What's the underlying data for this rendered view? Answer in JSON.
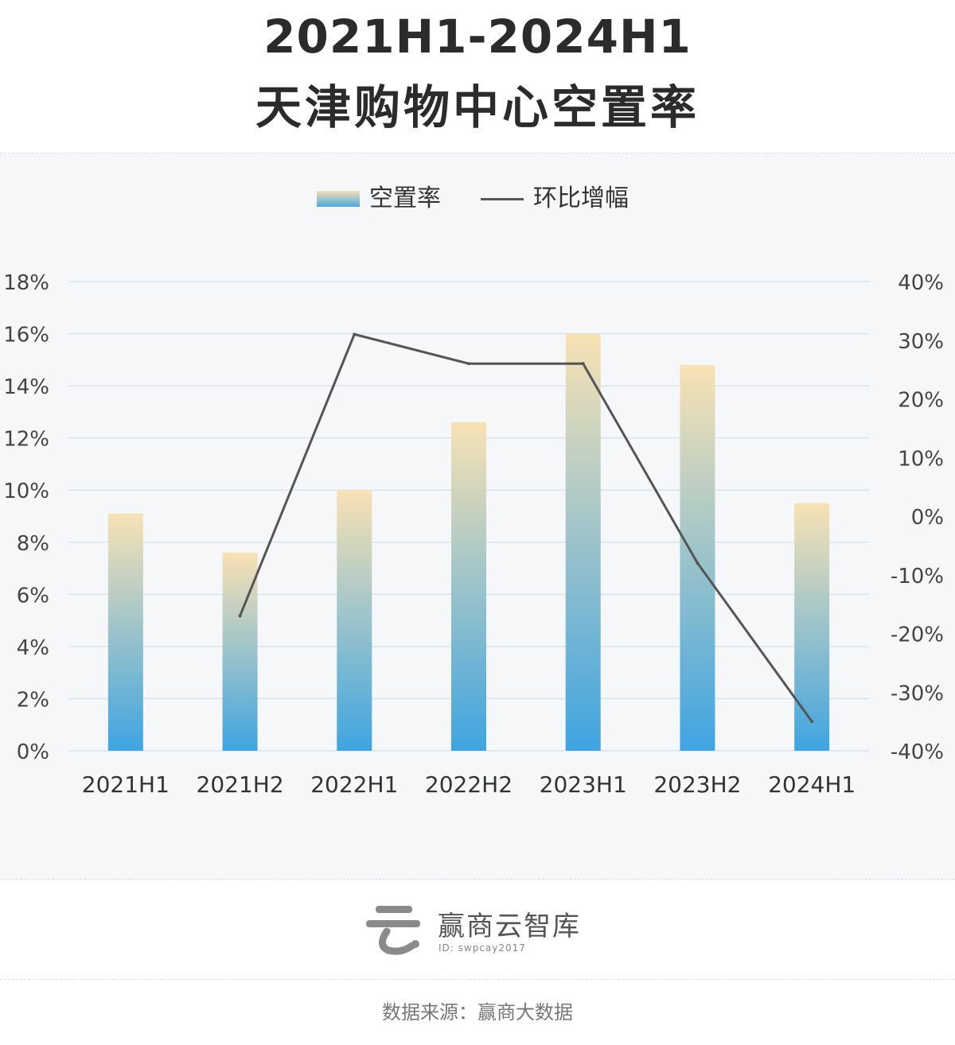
{
  "title": {
    "line1": "2021H1-2024H1",
    "line2": "天津购物中心空置率"
  },
  "legend": {
    "bar_label": "空置率",
    "line_label": "环比增幅"
  },
  "colors": {
    "bar_top": "#f8e2b4",
    "bar_bottom": "#3fa4e1",
    "line": "#555555",
    "grid": "#d6e4f0",
    "tick": "#444444"
  },
  "chart_data": {
    "type": "bar",
    "categories": [
      "2021H1",
      "2021H2",
      "2022H1",
      "2022H2",
      "2023H1",
      "2023H2",
      "2024H1"
    ],
    "series": [
      {
        "name": "空置率",
        "type": "bar",
        "axis": "left",
        "values": [
          9.1,
          7.6,
          10.0,
          12.6,
          16.0,
          14.8,
          9.5
        ]
      },
      {
        "name": "环比增幅",
        "type": "line",
        "axis": "right",
        "values": [
          null,
          -17.0,
          31.0,
          26.0,
          26.0,
          -8.0,
          -35.0
        ]
      }
    ],
    "y_left": {
      "ylim": [
        0,
        18
      ],
      "ticks": [
        "0%",
        "2%",
        "4%",
        "6%",
        "8%",
        "10%",
        "12%",
        "14%",
        "16%",
        "18%"
      ]
    },
    "y_right": {
      "ylim": [
        -40,
        40
      ],
      "ticks": [
        "-40%",
        "-30%",
        "-20%",
        "-10%",
        "0%",
        "10%",
        "20%",
        "30%",
        "40%"
      ]
    },
    "grid": true,
    "legend_position": "top-center"
  },
  "footer": {
    "brand": "赢商云智库",
    "brand_id": "ID: swpcay2017",
    "source": "数据来源：赢商大数据"
  }
}
